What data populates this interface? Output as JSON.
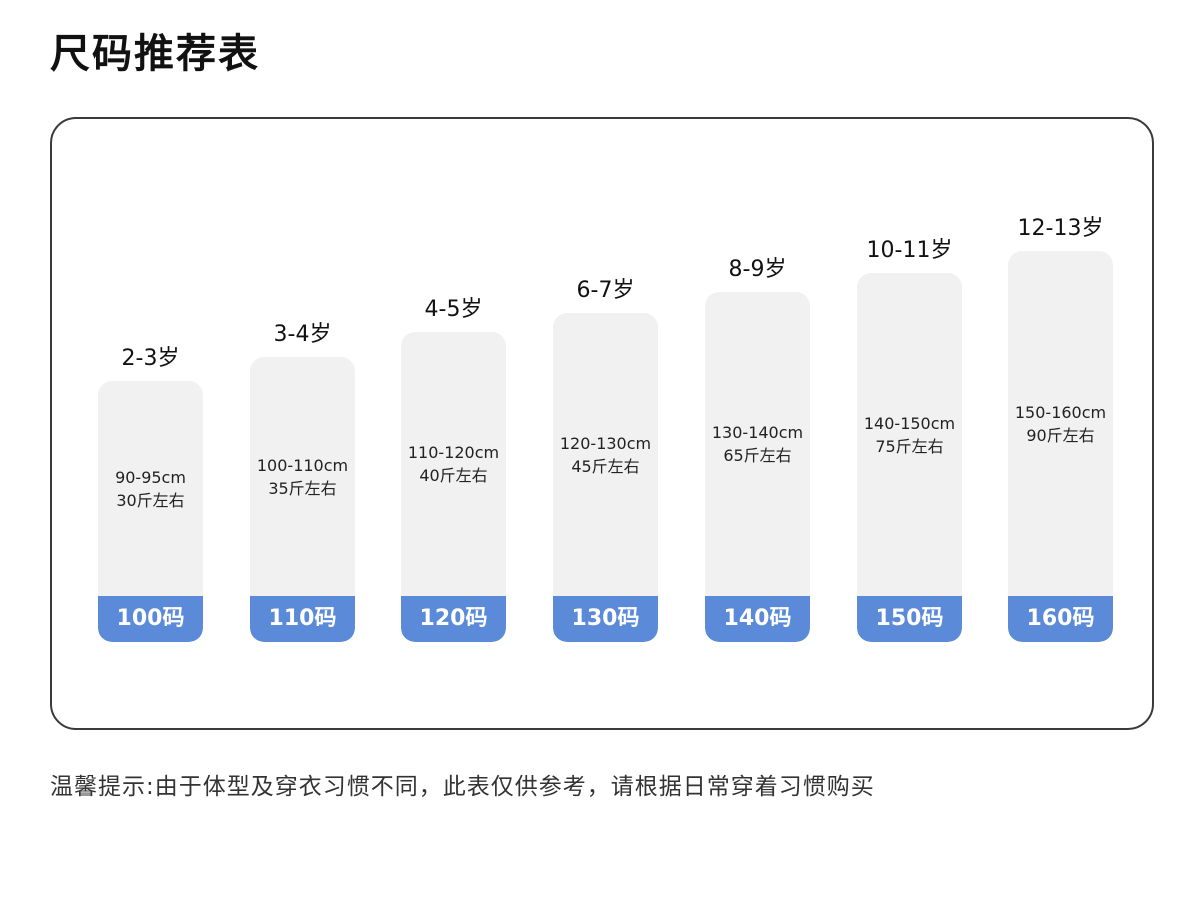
{
  "page": {
    "title": "尺码推荐表",
    "note": "温馨提示:由于体型及穿衣习惯不同，此表仅供参考，请根据日常穿着习惯购买"
  },
  "chart_data": {
    "type": "bar",
    "categories": [
      "100码",
      "110码",
      "120码",
      "130码",
      "140码",
      "150码",
      "160码"
    ],
    "series": [
      {
        "values": [
          {
            "size": "100码",
            "age": "2-3岁",
            "height": "90-95cm",
            "weight": "30斤左右",
            "fill": 0.55
          },
          {
            "size": "110码",
            "age": "3-4岁",
            "height": "100-110cm",
            "weight": "35斤左右",
            "fill": 0.63
          },
          {
            "size": "120码",
            "age": "4-5岁",
            "height": "110-120cm",
            "weight": "40斤左右",
            "fill": 0.71
          },
          {
            "size": "130码",
            "age": "6-7岁",
            "height": "120-130cm",
            "weight": "45斤左右",
            "fill": 0.77
          },
          {
            "size": "140码",
            "age": "8-9岁",
            "height": "130-140cm",
            "weight": "65斤左右",
            "fill": 0.84
          },
          {
            "size": "150码",
            "age": "10-11岁",
            "height": "140-150cm",
            "weight": "75斤左右",
            "fill": 0.9
          },
          {
            "size": "160码",
            "age": "12-13岁",
            "height": "150-160cm",
            "weight": "90斤左右",
            "fill": 0.97
          }
        ]
      }
    ],
    "colors": {
      "card": "#f1f1f1",
      "band": "#5b8bd8"
    }
  }
}
